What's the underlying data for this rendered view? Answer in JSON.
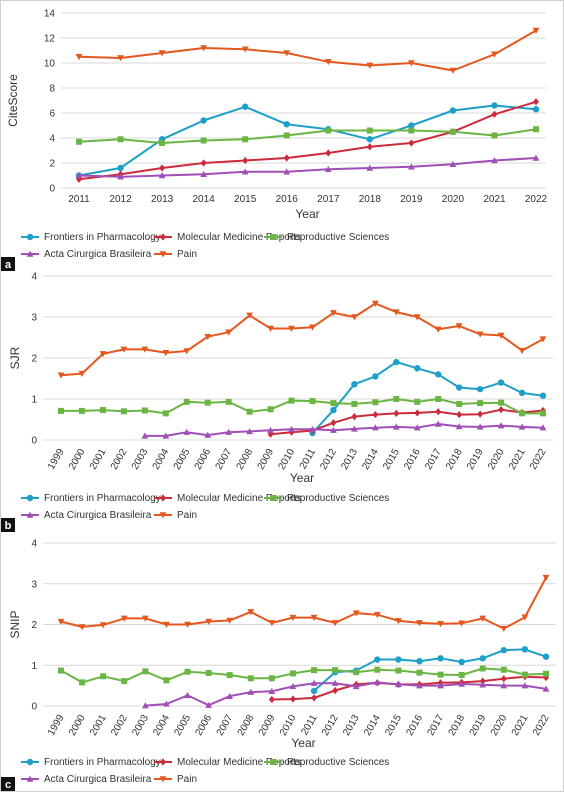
{
  "chart_data": [
    {
      "panel_label": "a",
      "type": "line",
      "xlabel": "Year",
      "ylabel": "CiteScore",
      "ylim": [
        0,
        14
      ],
      "yticks": [
        0,
        2,
        4,
        6,
        8,
        10,
        12,
        14
      ],
      "x": [
        2011,
        2012,
        2013,
        2014,
        2015,
        2016,
        2017,
        2018,
        2019,
        2020,
        2021,
        2022
      ],
      "x_tick_rotation": 0,
      "grid": "horizontal",
      "legend_position": "bottom",
      "series": [
        {
          "name": "Frontiers in Pharmacology",
          "color": "#1e9fc9",
          "marker": "circle",
          "values": [
            1.0,
            1.6,
            3.9,
            5.4,
            6.5,
            5.1,
            4.7,
            3.9,
            5.0,
            6.2,
            6.6,
            6.3
          ]
        },
        {
          "name": "Molecular Medicine Reports",
          "color": "#cc2b3c",
          "marker": "diamond",
          "values": [
            0.7,
            1.1,
            1.6,
            2.0,
            2.2,
            2.4,
            2.8,
            3.3,
            3.6,
            4.5,
            5.9,
            6.9
          ]
        },
        {
          "name": "Reproductive Sciences",
          "color": "#6ab544",
          "marker": "square",
          "values": [
            3.7,
            3.9,
            3.6,
            3.8,
            3.9,
            4.2,
            4.6,
            4.6,
            4.6,
            4.5,
            4.2,
            4.7
          ]
        },
        {
          "name": "Acta Cirurgica Brasileira",
          "color": "#a04fb6",
          "marker": "triangle-up",
          "values": [
            1.0,
            0.9,
            1.0,
            1.1,
            1.3,
            1.3,
            1.5,
            1.6,
            1.7,
            1.9,
            2.2,
            2.4
          ]
        },
        {
          "name": "Pain",
          "color": "#e4571f",
          "marker": "triangle-down",
          "values": [
            10.5,
            10.4,
            10.8,
            11.2,
            11.1,
            10.8,
            10.1,
            9.8,
            10.0,
            9.4,
            10.7,
            12.6
          ]
        }
      ]
    },
    {
      "panel_label": "b",
      "type": "line",
      "xlabel": "Year",
      "ylabel": "SJR",
      "ylim": [
        0,
        4
      ],
      "yticks": [
        0,
        1,
        2,
        3,
        4
      ],
      "x": [
        1999,
        2000,
        2001,
        2002,
        2003,
        2004,
        2005,
        2006,
        2007,
        2008,
        2009,
        2010,
        2011,
        2012,
        2013,
        2014,
        2015,
        2016,
        2017,
        2018,
        2019,
        2020,
        2021,
        2022
      ],
      "x_tick_rotation": -60,
      "grid": "horizontal",
      "legend_position": "bottom",
      "series": [
        {
          "name": "Frontiers in Pharmacology",
          "color": "#1e9fc9",
          "marker": "circle",
          "values": [
            null,
            null,
            null,
            null,
            null,
            null,
            null,
            null,
            null,
            null,
            null,
            null,
            0.17,
            0.73,
            1.36,
            1.55,
            1.9,
            1.75,
            1.6,
            1.28,
            1.24,
            1.4,
            1.15,
            1.08
          ]
        },
        {
          "name": "Molecular Medicine Reports",
          "color": "#cc2b3c",
          "marker": "diamond",
          "values": [
            null,
            null,
            null,
            null,
            null,
            null,
            null,
            null,
            null,
            null,
            0.14,
            0.19,
            0.23,
            0.42,
            0.57,
            0.62,
            0.65,
            0.66,
            0.69,
            0.62,
            0.63,
            0.74,
            0.67,
            0.72
          ]
        },
        {
          "name": "Reproductive Sciences",
          "color": "#6ab544",
          "marker": "square",
          "values": [
            0.71,
            0.71,
            0.73,
            0.7,
            0.72,
            0.65,
            0.93,
            0.91,
            0.93,
            0.69,
            0.75,
            0.96,
            0.95,
            0.9,
            0.88,
            0.92,
            1.0,
            0.93,
            1.0,
            0.88,
            0.9,
            0.91,
            0.65,
            0.65
          ]
        },
        {
          "name": "Acta Cirurgica Brasileira",
          "color": "#a04fb6",
          "marker": "triangle-up",
          "values": [
            null,
            null,
            null,
            null,
            0.1,
            0.1,
            0.19,
            0.12,
            0.19,
            0.21,
            0.24,
            0.26,
            0.26,
            0.24,
            0.27,
            0.3,
            0.32,
            0.3,
            0.39,
            0.33,
            0.32,
            0.35,
            0.32,
            0.3
          ]
        },
        {
          "name": "Pain",
          "color": "#e4571f",
          "marker": "triangle-down",
          "values": [
            1.58,
            1.62,
            2.1,
            2.21,
            2.21,
            2.13,
            2.17,
            2.52,
            2.63,
            3.04,
            2.72,
            2.72,
            2.75,
            3.1,
            3.0,
            3.33,
            3.12,
            3.0,
            2.7,
            2.78,
            2.58,
            2.55,
            2.18,
            2.46
          ]
        }
      ]
    },
    {
      "panel_label": "c",
      "type": "line",
      "xlabel": "Year",
      "ylabel": "SNIP",
      "ylim": [
        0,
        4
      ],
      "yticks": [
        0,
        1,
        2,
        3,
        4
      ],
      "x": [
        1999,
        2000,
        2001,
        2002,
        2003,
        2004,
        2005,
        2006,
        2007,
        2008,
        2009,
        2010,
        2011,
        2012,
        2013,
        2014,
        2015,
        2016,
        2017,
        2018,
        2019,
        2020,
        2021,
        2022
      ],
      "x_tick_rotation": -60,
      "grid": "horizontal",
      "legend_position": "bottom",
      "series": [
        {
          "name": "Frontiers in Pharmacology",
          "color": "#1e9fc9",
          "marker": "circle",
          "values": [
            null,
            null,
            null,
            null,
            null,
            null,
            null,
            null,
            null,
            null,
            null,
            null,
            0.37,
            0.83,
            0.87,
            1.14,
            1.14,
            1.1,
            1.17,
            1.08,
            1.17,
            1.37,
            1.39,
            1.21
          ]
        },
        {
          "name": "Molecular Medicine Reports",
          "color": "#cc2b3c",
          "marker": "diamond",
          "values": [
            null,
            null,
            null,
            null,
            null,
            null,
            null,
            null,
            null,
            null,
            0.16,
            0.17,
            0.2,
            0.38,
            0.53,
            0.57,
            0.53,
            0.53,
            0.57,
            0.58,
            0.61,
            0.67,
            0.72,
            0.7
          ]
        },
        {
          "name": "Reproductive Sciences",
          "color": "#6ab544",
          "marker": "square",
          "values": [
            0.87,
            0.58,
            0.73,
            0.61,
            0.85,
            0.63,
            0.84,
            0.81,
            0.76,
            0.68,
            0.68,
            0.8,
            0.88,
            0.88,
            0.83,
            0.89,
            0.87,
            0.82,
            0.77,
            0.76,
            0.92,
            0.89,
            0.77,
            0.79
          ]
        },
        {
          "name": "Acta Cirurgica Brasileira",
          "color": "#a04fb6",
          "marker": "triangle-up",
          "values": [
            null,
            null,
            null,
            null,
            0.01,
            0.05,
            0.26,
            0.02,
            0.24,
            0.34,
            0.36,
            0.48,
            0.56,
            0.56,
            0.48,
            0.58,
            0.53,
            0.5,
            0.5,
            0.54,
            0.52,
            0.5,
            0.5,
            0.42
          ]
        },
        {
          "name": "Pain",
          "color": "#e4571f",
          "marker": "triangle-down",
          "values": [
            2.07,
            1.94,
            1.99,
            2.15,
            2.15,
            2.0,
            2.0,
            2.07,
            2.1,
            2.31,
            2.04,
            2.17,
            2.17,
            2.04,
            2.28,
            2.24,
            2.09,
            2.04,
            2.02,
            2.03,
            2.15,
            1.9,
            2.18,
            3.15
          ]
        }
      ]
    }
  ]
}
